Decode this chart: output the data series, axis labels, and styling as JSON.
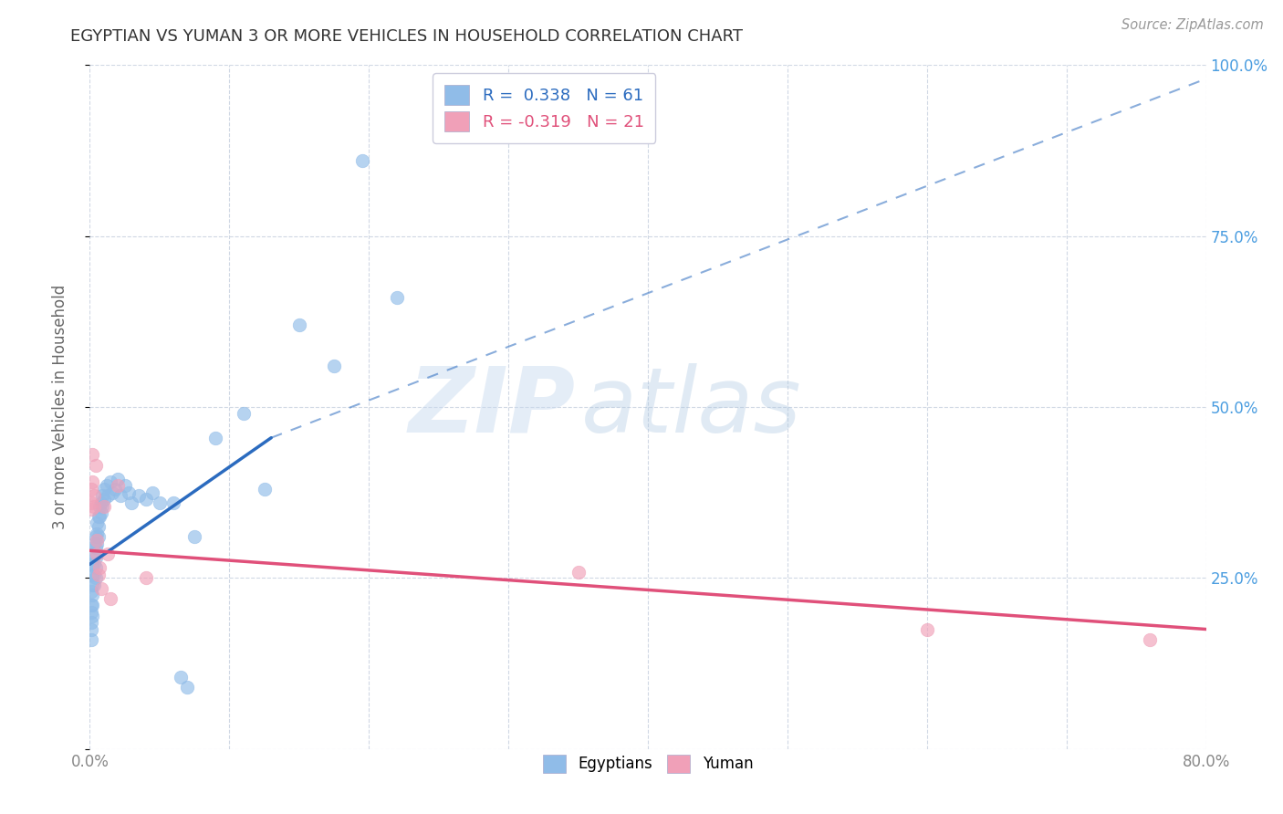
{
  "title": "EGYPTIAN VS YUMAN 3 OR MORE VEHICLES IN HOUSEHOLD CORRELATION CHART",
  "source": "Source: ZipAtlas.com",
  "ylabel": "3 or more Vehicles in Household",
  "xlim": [
    0.0,
    0.8
  ],
  "ylim": [
    0.0,
    1.0
  ],
  "xticks": [
    0.0,
    0.1,
    0.2,
    0.3,
    0.4,
    0.5,
    0.6,
    0.7,
    0.8
  ],
  "xticklabels": [
    "0.0%",
    "",
    "",
    "",
    "",
    "",
    "",
    "",
    "80.0%"
  ],
  "yticks": [
    0.0,
    0.25,
    0.5,
    0.75,
    1.0
  ],
  "yticklabels_right": [
    "",
    "25.0%",
    "50.0%",
    "75.0%",
    "100.0%"
  ],
  "background_color": "#ffffff",
  "grid_color": "#d0d8e4",
  "blue_color": "#90bce8",
  "blue_line_color": "#2b6bbf",
  "pink_color": "#f0a0b8",
  "pink_line_color": "#e0507a",
  "legend_blue_R": "0.338",
  "legend_blue_N": "61",
  "legend_pink_R": "-0.319",
  "legend_pink_N": "21",
  "watermark_zip": "ZIP",
  "watermark_atlas": "atlas",
  "blue_scatter_x": [
    0.001,
    0.001,
    0.001,
    0.001,
    0.001,
    0.001,
    0.002,
    0.002,
    0.002,
    0.002,
    0.002,
    0.002,
    0.003,
    0.003,
    0.003,
    0.003,
    0.003,
    0.004,
    0.004,
    0.004,
    0.004,
    0.004,
    0.005,
    0.005,
    0.005,
    0.006,
    0.006,
    0.006,
    0.007,
    0.007,
    0.008,
    0.008,
    0.009,
    0.009,
    0.01,
    0.01,
    0.012,
    0.013,
    0.015,
    0.016,
    0.018,
    0.02,
    0.022,
    0.025,
    0.028,
    0.03,
    0.035,
    0.04,
    0.045,
    0.05,
    0.06,
    0.065,
    0.07,
    0.075,
    0.09,
    0.11,
    0.125,
    0.15,
    0.175,
    0.195,
    0.22
  ],
  "blue_scatter_y": [
    0.23,
    0.21,
    0.2,
    0.185,
    0.175,
    0.16,
    0.27,
    0.255,
    0.24,
    0.225,
    0.21,
    0.195,
    0.3,
    0.285,
    0.27,
    0.255,
    0.24,
    0.31,
    0.295,
    0.28,
    0.265,
    0.25,
    0.33,
    0.315,
    0.3,
    0.34,
    0.325,
    0.31,
    0.355,
    0.34,
    0.36,
    0.345,
    0.37,
    0.355,
    0.38,
    0.365,
    0.385,
    0.37,
    0.39,
    0.375,
    0.38,
    0.395,
    0.37,
    0.385,
    0.375,
    0.36,
    0.37,
    0.365,
    0.375,
    0.36,
    0.36,
    0.105,
    0.09,
    0.31,
    0.455,
    0.49,
    0.38,
    0.62,
    0.56,
    0.86,
    0.66
  ],
  "pink_scatter_x": [
    0.001,
    0.001,
    0.001,
    0.002,
    0.002,
    0.003,
    0.003,
    0.004,
    0.005,
    0.005,
    0.006,
    0.007,
    0.008,
    0.01,
    0.013,
    0.015,
    0.02,
    0.04,
    0.35,
    0.6,
    0.76
  ],
  "pink_scatter_y": [
    0.38,
    0.36,
    0.35,
    0.43,
    0.39,
    0.37,
    0.355,
    0.415,
    0.285,
    0.305,
    0.255,
    0.265,
    0.235,
    0.355,
    0.285,
    0.22,
    0.385,
    0.25,
    0.258,
    0.175,
    0.16
  ],
  "blue_line_x0": 0.0,
  "blue_line_x_solid_end": 0.13,
  "blue_line_x1": 0.8,
  "blue_line_y_at_0": 0.27,
  "blue_line_y_at_solid_end": 0.455,
  "blue_line_y_at_1": 0.98,
  "pink_line_x0": 0.0,
  "pink_line_x1": 0.8,
  "pink_line_y_at_0": 0.29,
  "pink_line_y_at_1": 0.175
}
